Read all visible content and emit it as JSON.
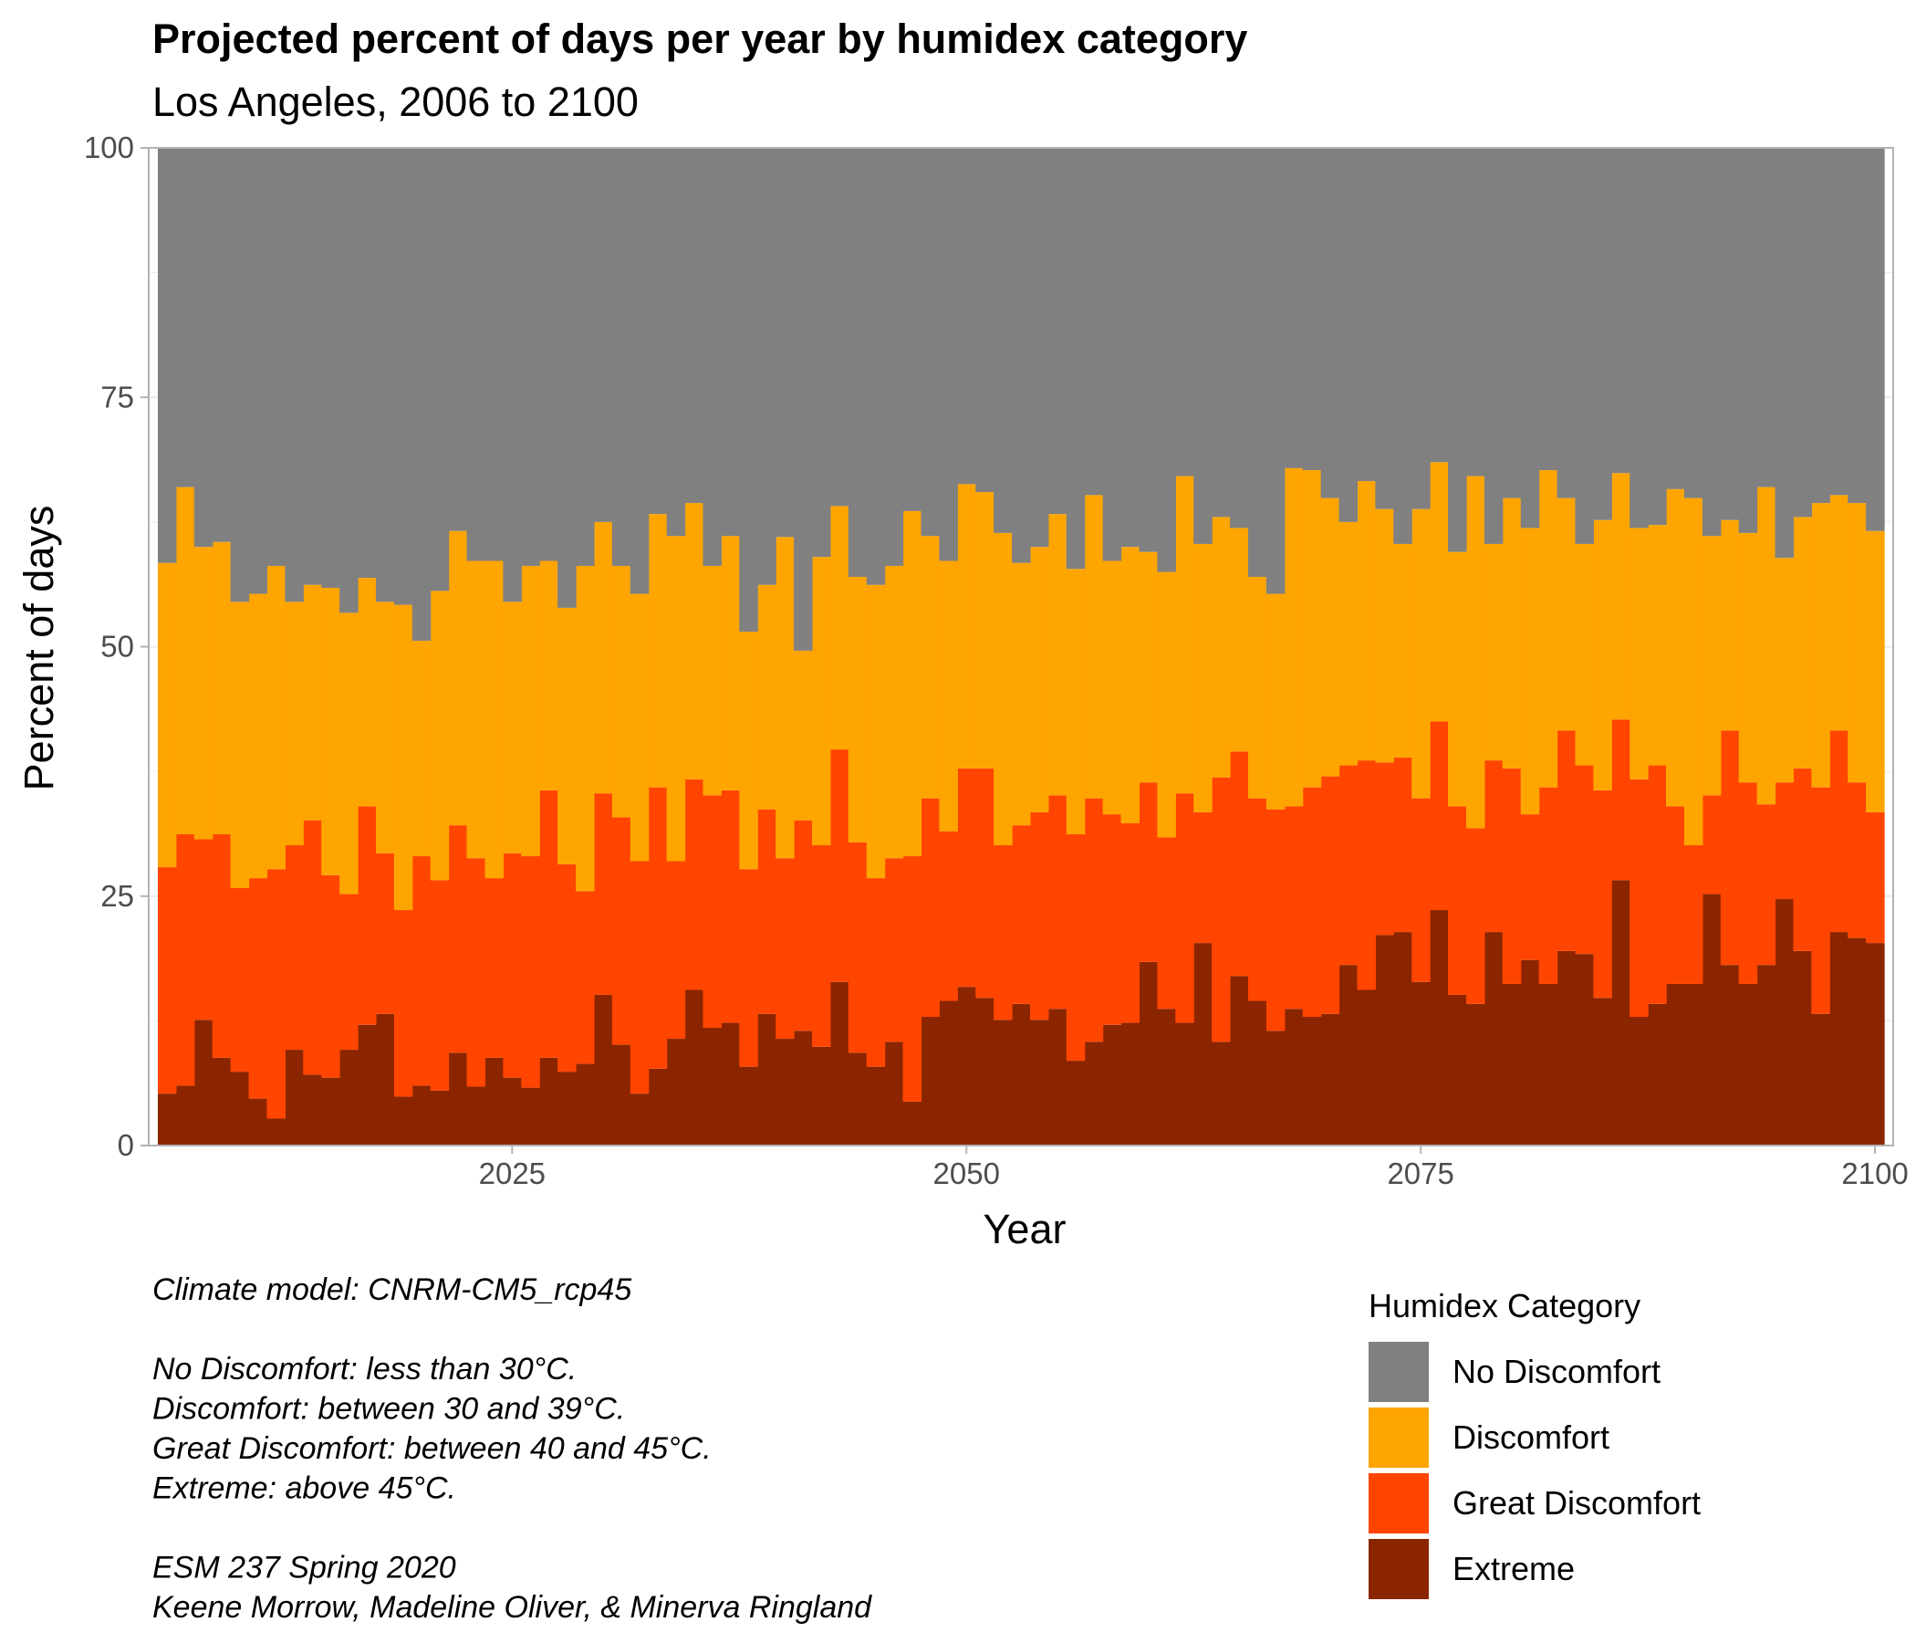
{
  "chart_data": {
    "type": "bar",
    "stacked": true,
    "title": "Projected percent of days per year by humidex category",
    "subtitle": "Los Angeles, 2006 to 2100",
    "xlabel": "Year",
    "ylabel": "Percent of days",
    "xlim": [
      2005,
      2101
    ],
    "ylim": [
      0,
      100
    ],
    "x_ticks": [
      "2025",
      "2050",
      "2075",
      "2100"
    ],
    "y_ticks": [
      "0",
      "25",
      "50",
      "75",
      "100"
    ],
    "grid": true,
    "legend": {
      "title": "Humidex Category",
      "position": "bottom-right",
      "entries": [
        {
          "name": "No Discomfort",
          "color": "#808080"
        },
        {
          "name": "Discomfort",
          "color": "#FFA500"
        },
        {
          "name": "Great Discomfort",
          "color": "#FF4500"
        },
        {
          "name": "Extreme",
          "color": "#8B2500"
        }
      ]
    },
    "x": [
      2006,
      2007,
      2008,
      2009,
      2010,
      2011,
      2012,
      2013,
      2014,
      2015,
      2016,
      2017,
      2018,
      2019,
      2020,
      2021,
      2022,
      2023,
      2024,
      2025,
      2026,
      2027,
      2028,
      2029,
      2030,
      2031,
      2032,
      2033,
      2034,
      2035,
      2036,
      2037,
      2038,
      2039,
      2040,
      2041,
      2042,
      2043,
      2044,
      2045,
      2046,
      2047,
      2048,
      2049,
      2050,
      2051,
      2052,
      2053,
      2054,
      2055,
      2056,
      2057,
      2058,
      2059,
      2060,
      2061,
      2062,
      2063,
      2064,
      2065,
      2066,
      2067,
      2068,
      2069,
      2070,
      2071,
      2072,
      2073,
      2074,
      2075,
      2076,
      2077,
      2078,
      2079,
      2080,
      2081,
      2082,
      2083,
      2084,
      2085,
      2086,
      2087,
      2088,
      2089,
      2090,
      2091,
      2092,
      2093,
      2094,
      2095,
      2096,
      2097,
      2098,
      2099,
      2100
    ],
    "series": [
      {
        "name": "Extreme",
        "color": "#8B2500",
        "cumulative_top": [
          5.2,
          6.0,
          12.6,
          8.8,
          7.4,
          4.7,
          2.7,
          9.6,
          7.1,
          6.8,
          9.6,
          12.1,
          13.2,
          4.9,
          6.0,
          5.5,
          9.3,
          5.9,
          8.8,
          6.8,
          5.8,
          8.8,
          7.4,
          8.2,
          15.1,
          10.1,
          5.2,
          7.7,
          10.7,
          15.6,
          11.8,
          12.3,
          7.9,
          13.2,
          10.7,
          11.5,
          9.9,
          16.4,
          9.3,
          7.9,
          10.4,
          4.4,
          12.9,
          14.5,
          15.9,
          14.8,
          12.6,
          14.2,
          12.6,
          13.7,
          8.5,
          10.4,
          12.1,
          12.3,
          18.4,
          13.7,
          12.3,
          20.3,
          10.4,
          17.0,
          14.5,
          11.5,
          13.7,
          12.9,
          13.2,
          18.1,
          15.6,
          21.1,
          21.4,
          16.4,
          23.6,
          15.1,
          14.2,
          21.4,
          16.2,
          18.6,
          16.2,
          19.5,
          19.2,
          14.8,
          26.6,
          12.9,
          14.2,
          16.2,
          16.2,
          25.2,
          18.1,
          16.2,
          18.1,
          24.7,
          19.5,
          13.2,
          21.4,
          20.8,
          20.3
        ]
      },
      {
        "name": "Great Discomfort",
        "color": "#FF4500",
        "cumulative_top": [
          27.9,
          31.2,
          30.7,
          31.2,
          25.8,
          26.8,
          27.7,
          30.1,
          32.6,
          27.1,
          25.2,
          34.0,
          29.3,
          23.6,
          29.0,
          26.6,
          32.1,
          28.8,
          26.8,
          29.3,
          29.0,
          35.6,
          28.2,
          25.5,
          35.3,
          32.9,
          28.5,
          35.9,
          28.5,
          36.7,
          35.1,
          35.6,
          27.7,
          33.7,
          28.8,
          32.6,
          30.1,
          39.7,
          30.4,
          26.8,
          28.8,
          29.0,
          34.8,
          31.5,
          37.8,
          37.8,
          30.1,
          32.1,
          33.4,
          35.1,
          31.2,
          34.8,
          33.2,
          32.3,
          36.4,
          30.9,
          35.3,
          33.4,
          36.9,
          39.5,
          34.8,
          33.7,
          34.0,
          35.9,
          37.0,
          38.1,
          38.6,
          38.4,
          38.9,
          34.8,
          42.5,
          34.0,
          31.8,
          38.6,
          37.8,
          33.2,
          35.9,
          41.6,
          38.1,
          35.6,
          42.7,
          36.7,
          38.1,
          34.0,
          30.1,
          35.1,
          41.6,
          36.4,
          34.2,
          36.4,
          37.8,
          35.9,
          41.6,
          36.4,
          33.4
        ]
      },
      {
        "name": "Discomfort",
        "color": "#FFA500",
        "cumulative_top": [
          58.4,
          66.0,
          60.0,
          60.5,
          54.5,
          55.3,
          58.1,
          54.5,
          56.2,
          55.9,
          53.4,
          56.9,
          54.5,
          54.2,
          50.6,
          55.6,
          61.6,
          58.6,
          58.6,
          54.5,
          58.1,
          58.6,
          53.9,
          58.1,
          62.5,
          58.1,
          55.3,
          63.3,
          61.1,
          64.4,
          58.1,
          61.1,
          51.5,
          56.2,
          61.0,
          49.6,
          59.0,
          64.1,
          57.0,
          56.2,
          58.1,
          63.6,
          61.1,
          58.6,
          66.3,
          65.5,
          61.4,
          58.4,
          60.0,
          63.3,
          57.8,
          65.2,
          58.6,
          60.0,
          59.5,
          57.5,
          67.1,
          60.3,
          63.0,
          61.9,
          57.0,
          55.3,
          67.9,
          67.7,
          64.9,
          62.5,
          66.6,
          63.8,
          60.3,
          63.8,
          68.5,
          59.5,
          67.1,
          60.3,
          64.9,
          61.9,
          67.7,
          64.9,
          60.3,
          62.7,
          67.4,
          61.9,
          62.2,
          65.8,
          64.9,
          61.1,
          62.7,
          61.4,
          66.0,
          58.9,
          63.0,
          64.4,
          65.2,
          64.4,
          61.6
        ]
      },
      {
        "name": "No Discomfort",
        "color": "#808080",
        "cumulative_top": [
          100,
          100,
          100,
          100,
          100,
          100,
          100,
          100,
          100,
          100,
          100,
          100,
          100,
          100,
          100,
          100,
          100,
          100,
          100,
          100,
          100,
          100,
          100,
          100,
          100,
          100,
          100,
          100,
          100,
          100,
          100,
          100,
          100,
          100,
          100,
          100,
          100,
          100,
          100,
          100,
          100,
          100,
          100,
          100,
          100,
          100,
          100,
          100,
          100,
          100,
          100,
          100,
          100,
          100,
          100,
          100,
          100,
          100,
          100,
          100,
          100,
          100,
          100,
          100,
          100,
          100,
          100,
          100,
          100,
          100,
          100,
          100,
          100,
          100,
          100,
          100,
          100,
          100,
          100,
          100,
          100,
          100,
          100,
          100,
          100,
          100,
          100,
          100,
          100,
          100,
          100,
          100,
          100,
          100,
          100
        ]
      }
    ],
    "caption_lines": [
      "Climate model:  CNRM-CM5_rcp45",
      "",
      "No Discomfort: less than 30°C.",
      "Discomfort: between 30 and 39°C.",
      "Great Discomfort: between 40 and 45°C.",
      "Extreme: above 45°C.",
      "",
      "ESM 237 Spring 2020",
      "Keene Morrow, Madeline Oliver, & Minerva Ringland"
    ]
  }
}
